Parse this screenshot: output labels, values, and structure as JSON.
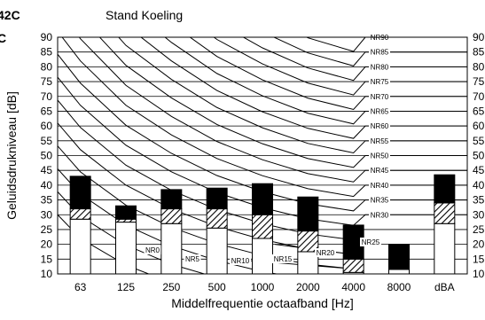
{
  "header": {
    "model_line_1": "42C",
    "model_line_2": "C"
  },
  "chart_data": {
    "type": "bar",
    "title": "Stand Koeling",
    "xlabel": "Middelfrequentie octaafband [Hz]",
    "ylabel": "Geluidsdrukniveau [dB]",
    "ylim": [
      10,
      90
    ],
    "yticks": [
      10,
      15,
      20,
      25,
      30,
      35,
      40,
      45,
      50,
      55,
      60,
      65,
      70,
      75,
      80,
      85,
      90
    ],
    "categories": [
      "63",
      "125",
      "250",
      "500",
      "1000",
      "2000",
      "4000",
      "8000",
      "dBA"
    ],
    "series": [
      {
        "values": [
          28.5,
          27.5,
          27,
          25.5,
          22,
          17.5,
          10.5,
          11.5,
          27
        ]
      },
      {
        "values": [
          32,
          28.5,
          32,
          32,
          30,
          24.5,
          15,
          11.5,
          34
        ]
      },
      {
        "values": [
          43,
          33,
          38.5,
          39,
          40.5,
          36,
          26.5,
          20,
          43.5
        ]
      }
    ],
    "nr_curves": {
      "labels": [
        "NR0",
        "NR5",
        "NR10",
        "NR15",
        "NR20",
        "NR25",
        "NR30",
        "NR35",
        "NR40",
        "NR45",
        "NR50",
        "NR55",
        "NR60",
        "NR65",
        "NR70",
        "NR75",
        "NR80",
        "NR85",
        "NR90"
      ]
    },
    "grid": true,
    "colors": {
      "lower": "#ffffff",
      "middle": "#ffffff",
      "upper": "#000000",
      "curves": "#000000"
    }
  }
}
